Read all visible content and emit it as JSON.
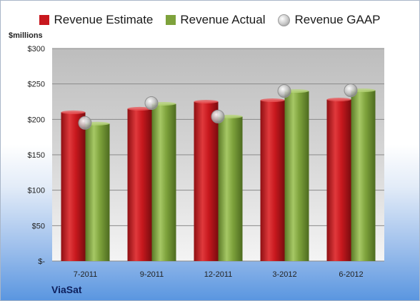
{
  "chart_data": {
    "type": "bar",
    "categories": [
      "7-2011",
      "9-2011",
      "12-2011",
      "3-2012",
      "6-2012"
    ],
    "series": [
      {
        "name": "Revenue Estimate",
        "kind": "bar",
        "color": "#c8181e",
        "values": [
          210,
          215,
          225,
          227,
          228
        ]
      },
      {
        "name": "Revenue Actual",
        "kind": "bar",
        "color": "#7ea23c",
        "values": [
          194,
          222,
          204,
          240,
          241
        ]
      },
      {
        "name": "Revenue GAAP",
        "kind": "scatter",
        "color": "#c0c0c0",
        "values": [
          195,
          223,
          204,
          240,
          241
        ]
      }
    ],
    "ylabel": "$millions",
    "ylim": [
      0,
      300
    ],
    "yticks": [
      {
        "value": 300,
        "label": "$300"
      },
      {
        "value": 250,
        "label": "$250"
      },
      {
        "value": 200,
        "label": "$200"
      },
      {
        "value": 150,
        "label": "$150"
      },
      {
        "value": 100,
        "label": "$100"
      },
      {
        "value": 50,
        "label": "$50"
      },
      {
        "value": 0,
        "label": "$-"
      }
    ],
    "grid": true,
    "legend_position": "top"
  },
  "company": "ViaSat"
}
